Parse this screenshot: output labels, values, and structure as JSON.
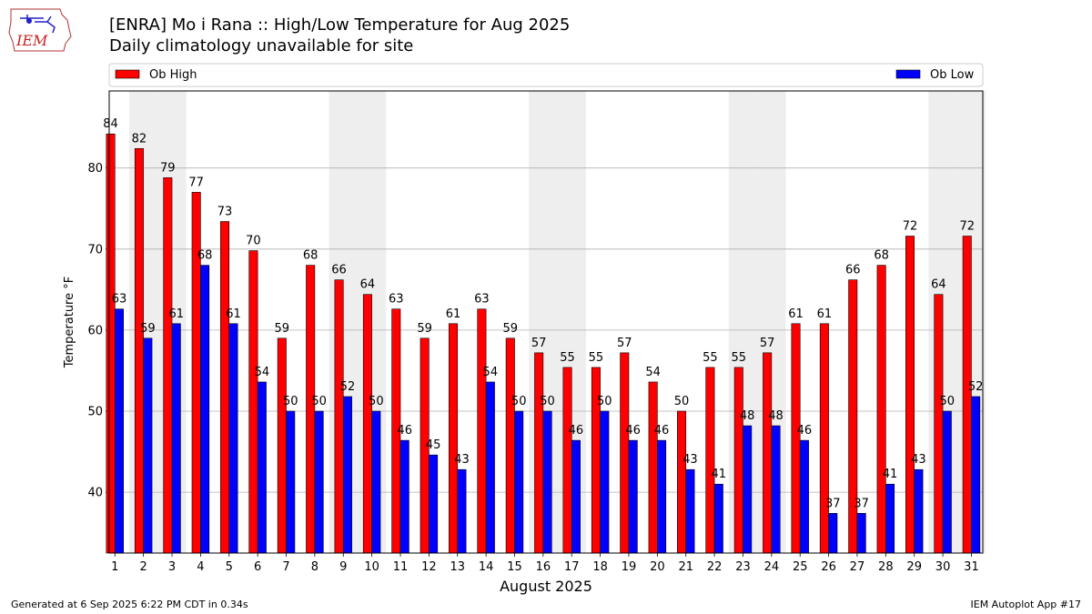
{
  "header": {
    "title_line1": "[ENRA] Mo i Rana :: High/Low Temperature for Aug 2025",
    "title_line2": "Daily climatology unavailable for site",
    "logo_text": "IEM"
  },
  "footer": {
    "generated": "Generated at 6 Sep 2025 6:22 PM CDT in 0.34s",
    "app": "IEM Autoplot App #17"
  },
  "colors": {
    "high": "#ff0000",
    "low": "#0000ff",
    "weekend_band": "#eeeeee",
    "grid": "#b0b0b0"
  },
  "chart_data": {
    "type": "bar",
    "xlabel": "August 2025",
    "ylabel": "Temperature °F",
    "ylim": [
      32.5,
      89.5
    ],
    "yticks": [
      40,
      50,
      60,
      70,
      80
    ],
    "grid": "horizontal",
    "legend_placement": "top",
    "categories": [
      "1",
      "2",
      "3",
      "4",
      "5",
      "6",
      "7",
      "8",
      "9",
      "10",
      "11",
      "12",
      "13",
      "14",
      "15",
      "16",
      "17",
      "18",
      "19",
      "20",
      "21",
      "22",
      "23",
      "24",
      "25",
      "26",
      "27",
      "28",
      "29",
      "30",
      "31"
    ],
    "shaded_days": [
      2,
      3,
      9,
      10,
      16,
      17,
      23,
      24,
      30,
      31
    ],
    "series": [
      {
        "name": "Ob High",
        "color": "#ff0000",
        "values": [
          84.2,
          82.4,
          78.8,
          77.0,
          73.4,
          69.8,
          59.0,
          68.0,
          66.2,
          64.4,
          62.6,
          59.0,
          60.8,
          62.6,
          59.0,
          57.2,
          55.4,
          55.4,
          57.2,
          53.6,
          50.0,
          55.4,
          55.4,
          57.2,
          60.8,
          60.8,
          66.2,
          68.0,
          71.6,
          64.4,
          71.6
        ],
        "labels": [
          "84",
          "82",
          "79",
          "77",
          "73",
          "70",
          "59",
          "68",
          "66",
          "64",
          "63",
          "59",
          "61",
          "63",
          "59",
          "57",
          "55",
          "55",
          "57",
          "54",
          "50",
          "55",
          "55",
          "57",
          "61",
          "61",
          "66",
          "68",
          "72",
          "64",
          "72"
        ]
      },
      {
        "name": "Ob Low",
        "color": "#0000ff",
        "values": [
          62.6,
          59.0,
          60.8,
          68.0,
          60.8,
          53.6,
          50.0,
          50.0,
          51.8,
          50.0,
          46.4,
          44.6,
          42.8,
          53.6,
          50.0,
          50.0,
          46.4,
          50.0,
          46.4,
          46.4,
          42.8,
          41.0,
          48.2,
          48.2,
          46.4,
          37.4,
          37.4,
          41.0,
          42.8,
          50.0,
          51.8
        ],
        "labels": [
          "63",
          "59",
          "61",
          "68",
          "61",
          "54",
          "50",
          "50",
          "52",
          "50",
          "46",
          "45",
          "43",
          "54",
          "50",
          "50",
          "46",
          "50",
          "46",
          "46",
          "43",
          "41",
          "48",
          "48",
          "46",
          "37",
          "37",
          "41",
          "43",
          "50",
          "52"
        ]
      }
    ]
  }
}
